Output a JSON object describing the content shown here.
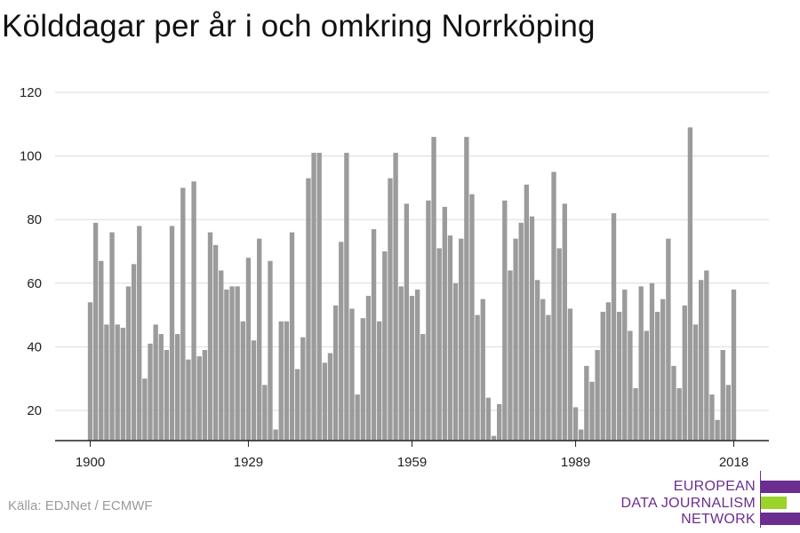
{
  "chart_data": {
    "type": "bar",
    "title": "Kölddagar per år i och omkring Norrköping",
    "x_start": 1900,
    "x_end": 2018,
    "xticks": [
      1900,
      1929,
      1959,
      1989,
      2018
    ],
    "yticks": [
      20,
      40,
      60,
      80,
      100,
      120
    ],
    "ylim": [
      10,
      120
    ],
    "grid": true,
    "values": [
      54,
      79,
      67,
      47,
      76,
      47,
      46,
      59,
      66,
      78,
      30,
      41,
      47,
      44,
      39,
      78,
      44,
      90,
      36,
      92,
      37,
      39,
      76,
      72,
      64,
      58,
      59,
      59,
      48,
      68,
      42,
      74,
      28,
      67,
      14,
      48,
      48,
      76,
      33,
      43,
      93,
      101,
      101,
      35,
      38,
      53,
      73,
      101,
      52,
      25,
      49,
      56,
      77,
      48,
      70,
      93,
      101,
      59,
      85,
      56,
      58,
      44,
      86,
      106,
      71,
      84,
      75,
      60,
      74,
      106,
      88,
      50,
      55,
      24,
      12,
      22,
      86,
      64,
      74,
      79,
      91,
      81,
      61,
      55,
      50,
      95,
      71,
      85,
      52,
      21,
      14,
      34,
      29,
      39,
      51,
      54,
      82,
      51,
      58,
      45,
      27,
      59,
      45,
      60,
      51,
      55,
      74,
      34,
      27,
      53,
      109,
      47,
      61,
      64,
      25,
      17,
      39,
      28,
      58
    ],
    "bar_color": "#9b9b9b"
  },
  "source": "Källa: EDJNet / ECMWF",
  "logo": {
    "lines": [
      "EUROPEAN",
      "DATA JOURNALISM",
      "NETWORK"
    ],
    "colors": {
      "purple": "#6b2d90",
      "green": "#9ad32a"
    }
  }
}
